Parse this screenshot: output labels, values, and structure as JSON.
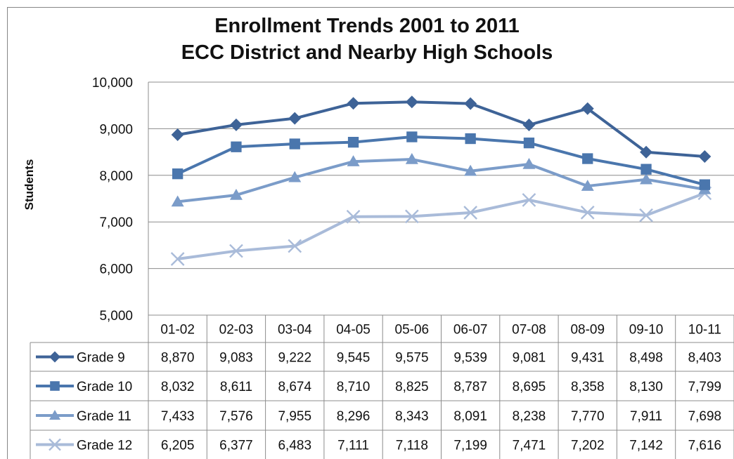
{
  "chart_data": {
    "type": "line",
    "title": "Enrollment Trends 2001 to 2011",
    "subtitle": "ECC District and Nearby High Schools",
    "ylabel": "Students",
    "xlabel": "",
    "ylim": [
      5000,
      10000
    ],
    "yticks": [
      "5,000",
      "6,000",
      "7,000",
      "8,000",
      "9,000",
      "10,000"
    ],
    "grid": true,
    "legend": "data table",
    "categories": [
      "01-02",
      "02-03",
      "03-04",
      "04-05",
      "05-06",
      "06-07",
      "07-08",
      "08-09",
      "09-10",
      "10-11"
    ],
    "series": [
      {
        "name": "Grade 9",
        "color": "#3e6397",
        "marker": "diamond",
        "values": [
          8870,
          9083,
          9222,
          9545,
          9575,
          9539,
          9081,
          9431,
          8498,
          8403
        ],
        "labels": [
          "8,870",
          "9,083",
          "9,222",
          "9,545",
          "9,575",
          "9,539",
          "9,081",
          "9,431",
          "8,498",
          "8,403"
        ]
      },
      {
        "name": "Grade 10",
        "color": "#4a76ad",
        "marker": "square",
        "values": [
          8032,
          8611,
          8674,
          8710,
          8825,
          8787,
          8695,
          8358,
          8130,
          7799
        ],
        "labels": [
          "8,032",
          "8,611",
          "8,674",
          "8,710",
          "8,825",
          "8,787",
          "8,695",
          "8,358",
          "8,130",
          "7,799"
        ]
      },
      {
        "name": "Grade 11",
        "color": "#7b9cc9",
        "marker": "triangle",
        "values": [
          7433,
          7576,
          7955,
          8296,
          8343,
          8091,
          8238,
          7770,
          7911,
          7698
        ],
        "labels": [
          "7,433",
          "7,576",
          "7,955",
          "8,296",
          "8,343",
          "8,091",
          "8,238",
          "7,770",
          "7,911",
          "7,698"
        ]
      },
      {
        "name": "Grade 12",
        "color": "#a9bbd9",
        "marker": "x",
        "values": [
          6205,
          6377,
          6483,
          7111,
          7118,
          7199,
          7471,
          7202,
          7142,
          7616
        ],
        "labels": [
          "6,205",
          "6,377",
          "6,483",
          "7,111",
          "7,118",
          "7,199",
          "7,471",
          "7,202",
          "7,142",
          "7,616"
        ]
      }
    ]
  }
}
